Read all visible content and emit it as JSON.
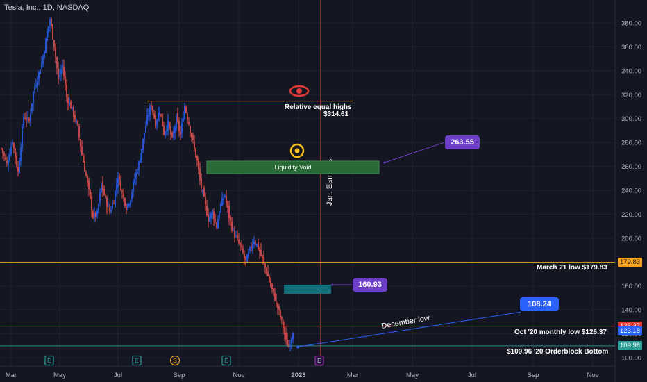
{
  "header": {
    "title": "Tesla, Inc., 1D, NASDAQ"
  },
  "colors": {
    "up": "#2962ff",
    "down": "#ef5350",
    "orange": "#f7a21b",
    "green_zone": "#2a6a37",
    "teal_zone": "#13707a",
    "purple": "#6c3fc6",
    "blue": "#2962ff",
    "teal_tag": "#2aa198",
    "red_tag": "#e53935",
    "vline": "#e5514a"
  },
  "chart_data": {
    "type": "candlestick",
    "title": "Tesla, Inc., 1D, NASDAQ",
    "x_ticks": [
      "Mar",
      "May",
      "Jul",
      "Sep",
      "Nov",
      "2023",
      "Mar",
      "May",
      "Jul",
      "Sep",
      "Nov"
    ],
    "y_ticks": [
      100.0,
      120.0,
      140.0,
      160.0,
      180.0,
      200.0,
      220.0,
      240.0,
      260.0,
      280.0,
      300.0,
      320.0,
      340.0,
      360.0,
      380.0
    ],
    "ylim": [
      95,
      392
    ],
    "price_path": [
      [
        0,
        275
      ],
      [
        4,
        262
      ],
      [
        8,
        282
      ],
      [
        12,
        255
      ],
      [
        16,
        302
      ],
      [
        20,
        298
      ],
      [
        23,
        322
      ],
      [
        27,
        338
      ],
      [
        30,
        352
      ],
      [
        33,
        372
      ],
      [
        35,
        383
      ],
      [
        38,
        362
      ],
      [
        41,
        332
      ],
      [
        44,
        345
      ],
      [
        47,
        318
      ],
      [
        50,
        310
      ],
      [
        53,
        300
      ],
      [
        55,
        292
      ],
      [
        58,
        270
      ],
      [
        61,
        252
      ],
      [
        64,
        232
      ],
      [
        66,
        218
      ],
      [
        69,
        220
      ],
      [
        72,
        245
      ],
      [
        75,
        232
      ],
      [
        78,
        222
      ],
      [
        81,
        232
      ],
      [
        84,
        252
      ],
      [
        87,
        238
      ],
      [
        90,
        226
      ],
      [
        93,
        234
      ],
      [
        96,
        250
      ],
      [
        99,
        262
      ],
      [
        102,
        282
      ],
      [
        105,
        300
      ],
      [
        108,
        312
      ],
      [
        111,
        296
      ],
      [
        114,
        308
      ],
      [
        117,
        288
      ],
      [
        120,
        296
      ],
      [
        123,
        282
      ],
      [
        126,
        300
      ],
      [
        129,
        286
      ],
      [
        132,
        311
      ],
      [
        135,
        296
      ],
      [
        138,
        280
      ],
      [
        141,
        264
      ],
      [
        143,
        248
      ],
      [
        146,
        232
      ],
      [
        149,
        216
      ],
      [
        152,
        222
      ],
      [
        155,
        210
      ],
      [
        158,
        228
      ],
      [
        161,
        236
      ],
      [
        164,
        218
      ],
      [
        167,
        205
      ],
      [
        170,
        198
      ],
      [
        173,
        190
      ],
      [
        176,
        180
      ],
      [
        179,
        190
      ],
      [
        182,
        199
      ],
      [
        185,
        192
      ],
      [
        188,
        182
      ],
      [
        191,
        172
      ],
      [
        194,
        160
      ],
      [
        197,
        150
      ],
      [
        200,
        138
      ],
      [
        203,
        126
      ],
      [
        205,
        113
      ],
      [
        207,
        109
      ],
      [
        209,
        118
      ],
      [
        210,
        123
      ]
    ],
    "annotations": [
      {
        "text": "Relative equal highs",
        "value": "$314.61",
        "price": 314.61,
        "from": 107,
        "to": 257
      },
      {
        "text": "Liquidity Void",
        "price_top": 265,
        "price_bottom": 255,
        "from": 150,
        "to": 276
      },
      {
        "text": "March 21 low $179.83",
        "price": 179.83
      },
      {
        "text": "Oct '20 monthly low $126.37",
        "price": 126.37
      },
      {
        "text": "$109.96 '20 Orderblock Bottom",
        "price": 109.96
      },
      {
        "text": "December low",
        "from_price": 108.9,
        "to_price": 138
      },
      {
        "text": "Jan. Earnings"
      }
    ],
    "callouts": [
      {
        "text": "263.55",
        "price": 263.55
      },
      {
        "text": "160.93",
        "price": 160.93
      },
      {
        "text": "108.24",
        "price": 140
      }
    ],
    "price_tags": [
      {
        "text": "179.83",
        "price": 179.83,
        "kind": "orange"
      },
      {
        "text": "126.37",
        "price": 126.37,
        "kind": "red"
      },
      {
        "text": "123.18",
        "price": 122.5,
        "kind": "blue"
      },
      {
        "text": "109.96",
        "price": 109.96,
        "kind": "teal"
      }
    ],
    "events": [
      {
        "letter": "E",
        "kind": "earnings"
      },
      {
        "letter": "E",
        "kind": "earnings"
      },
      {
        "letter": "S",
        "kind": "split"
      },
      {
        "letter": "E",
        "kind": "earnings"
      },
      {
        "letter": "E",
        "kind": "earnings-upcoming"
      }
    ]
  }
}
